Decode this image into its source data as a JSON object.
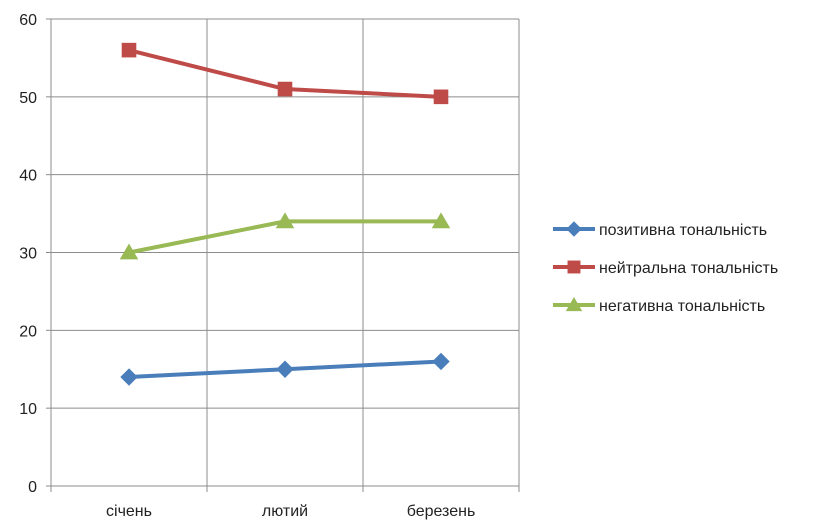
{
  "chart_data": {
    "type": "line",
    "categories": [
      "січень",
      "лютий",
      "березень"
    ],
    "series": [
      {
        "name": "позитивна тональність",
        "values": [
          14,
          15,
          16
        ],
        "color": "#4a7ebb",
        "marker": "diamond"
      },
      {
        "name": "нейтральна тональність",
        "values": [
          56,
          51,
          50
        ],
        "color": "#be4b48",
        "marker": "square"
      },
      {
        "name": "негативна тональність",
        "values": [
          30,
          34,
          34
        ],
        "color": "#98b954",
        "marker": "triangle"
      }
    ],
    "ylim": [
      0,
      60
    ],
    "yticks": [
      "0",
      "10",
      "20",
      "30",
      "40",
      "50",
      "60"
    ],
    "grid": true,
    "legend": "right"
  }
}
